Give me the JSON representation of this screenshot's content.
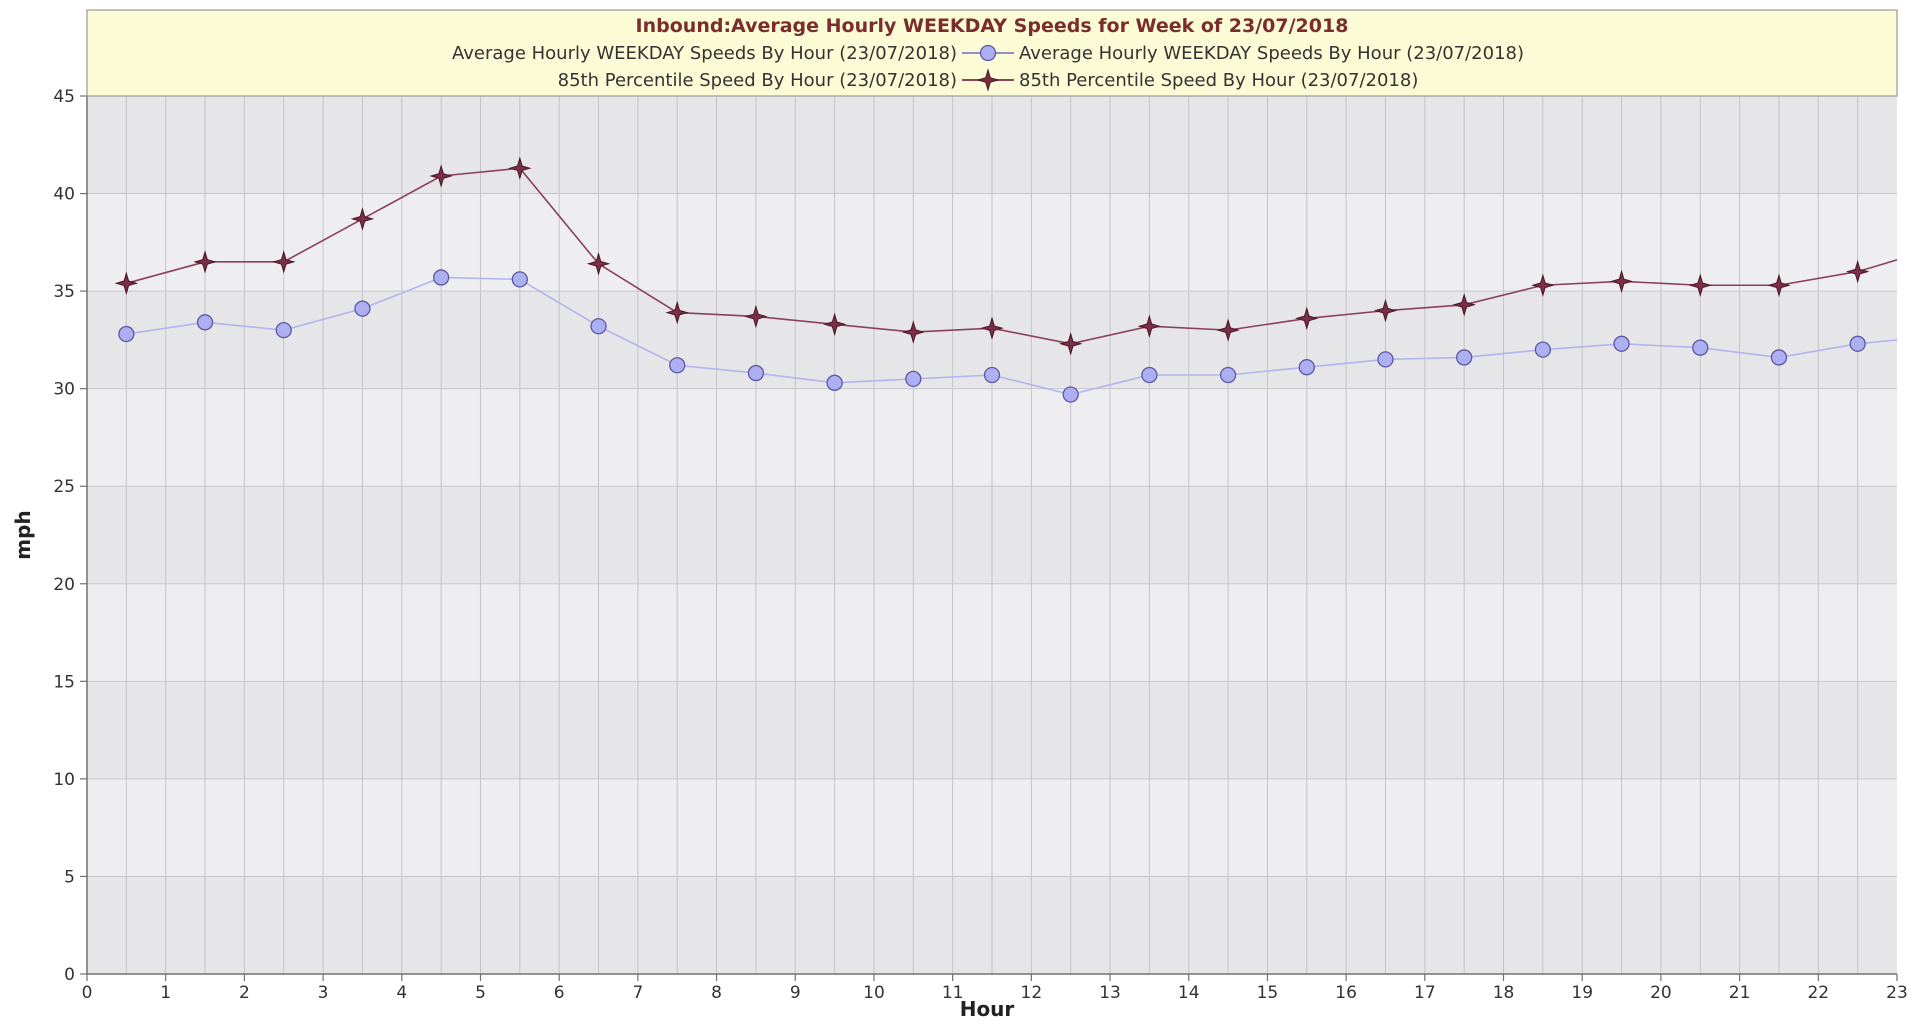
{
  "chart_data": {
    "type": "line",
    "title": "Inbound:Average Hourly WEEKDAY Speeds for Week of 23/07/2018",
    "xlabel": "Hour",
    "ylabel": "mph",
    "xlim": [
      0,
      23
    ],
    "ylim": [
      0,
      45
    ],
    "x_ticks": [
      0,
      1,
      2,
      3,
      4,
      5,
      6,
      7,
      8,
      9,
      10,
      11,
      12,
      13,
      14,
      15,
      16,
      17,
      18,
      19,
      20,
      21,
      22,
      23
    ],
    "y_ticks": [
      0,
      5,
      10,
      15,
      20,
      25,
      30,
      35,
      40,
      45
    ],
    "grid": true,
    "legend_placement": "top",
    "x": [
      0.5,
      1.5,
      2.5,
      3.5,
      4.5,
      5.5,
      6.5,
      7.5,
      8.5,
      9.5,
      10.5,
      11.5,
      12.5,
      13.5,
      14.5,
      15.5,
      16.5,
      17.5,
      18.5,
      19.5,
      20.5,
      21.5,
      22.5
    ],
    "series": [
      {
        "name": "Average Hourly WEEKDAY Speeds By Hour (23/07/2018)",
        "legend_label": "Average Hourly WEEKDAY Speeds By Hour (23/07/2018)",
        "marker": "circle",
        "color": "#9999dd",
        "values": [
          32.8,
          33.4,
          33.0,
          34.1,
          35.7,
          35.6,
          33.2,
          31.2,
          30.8,
          30.3,
          30.5,
          30.7,
          29.7,
          30.7,
          30.7,
          31.1,
          31.5,
          31.6,
          32.0,
          32.3,
          32.1,
          31.6,
          32.3
        ],
        "end_value": 32.5
      },
      {
        "name": "85th Percentile Speed By Hour (23/07/2018)",
        "legend_label": "85th Percentile Speed By Hour (23/07/2018)",
        "marker": "star",
        "color": "#7a2f45",
        "values": [
          35.4,
          36.5,
          36.5,
          38.7,
          40.9,
          41.3,
          36.4,
          33.9,
          33.7,
          33.3,
          32.9,
          33.1,
          32.3,
          33.2,
          33.0,
          33.6,
          34.0,
          34.3,
          35.3,
          35.5,
          35.3,
          35.3,
          36.0
        ],
        "end_value": 36.6
      }
    ]
  }
}
